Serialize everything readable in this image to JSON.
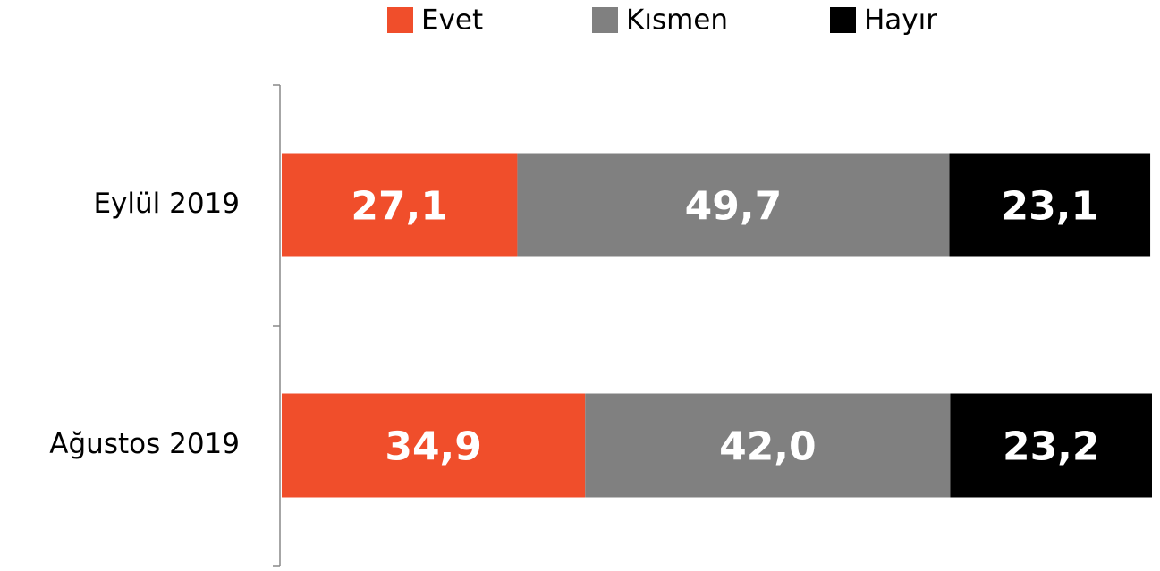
{
  "chart_data": {
    "type": "stacked-bar-horizontal",
    "categories": [
      "Eylül 2019",
      "Ağustos 2019"
    ],
    "series": [
      {
        "name": "Evet",
        "color": "#f04e2b",
        "values": [
          27.1,
          34.9
        ],
        "value_labels": [
          "27,1",
          "34,9"
        ]
      },
      {
        "name": "Kısmen",
        "color": "#808080",
        "values": [
          49.7,
          42.0
        ],
        "value_labels": [
          "49,7",
          "42,0"
        ]
      },
      {
        "name": "Hayır",
        "color": "#000000",
        "values": [
          23.1,
          23.2
        ],
        "value_labels": [
          "23,1",
          "23,2"
        ]
      }
    ],
    "legend": "top"
  }
}
